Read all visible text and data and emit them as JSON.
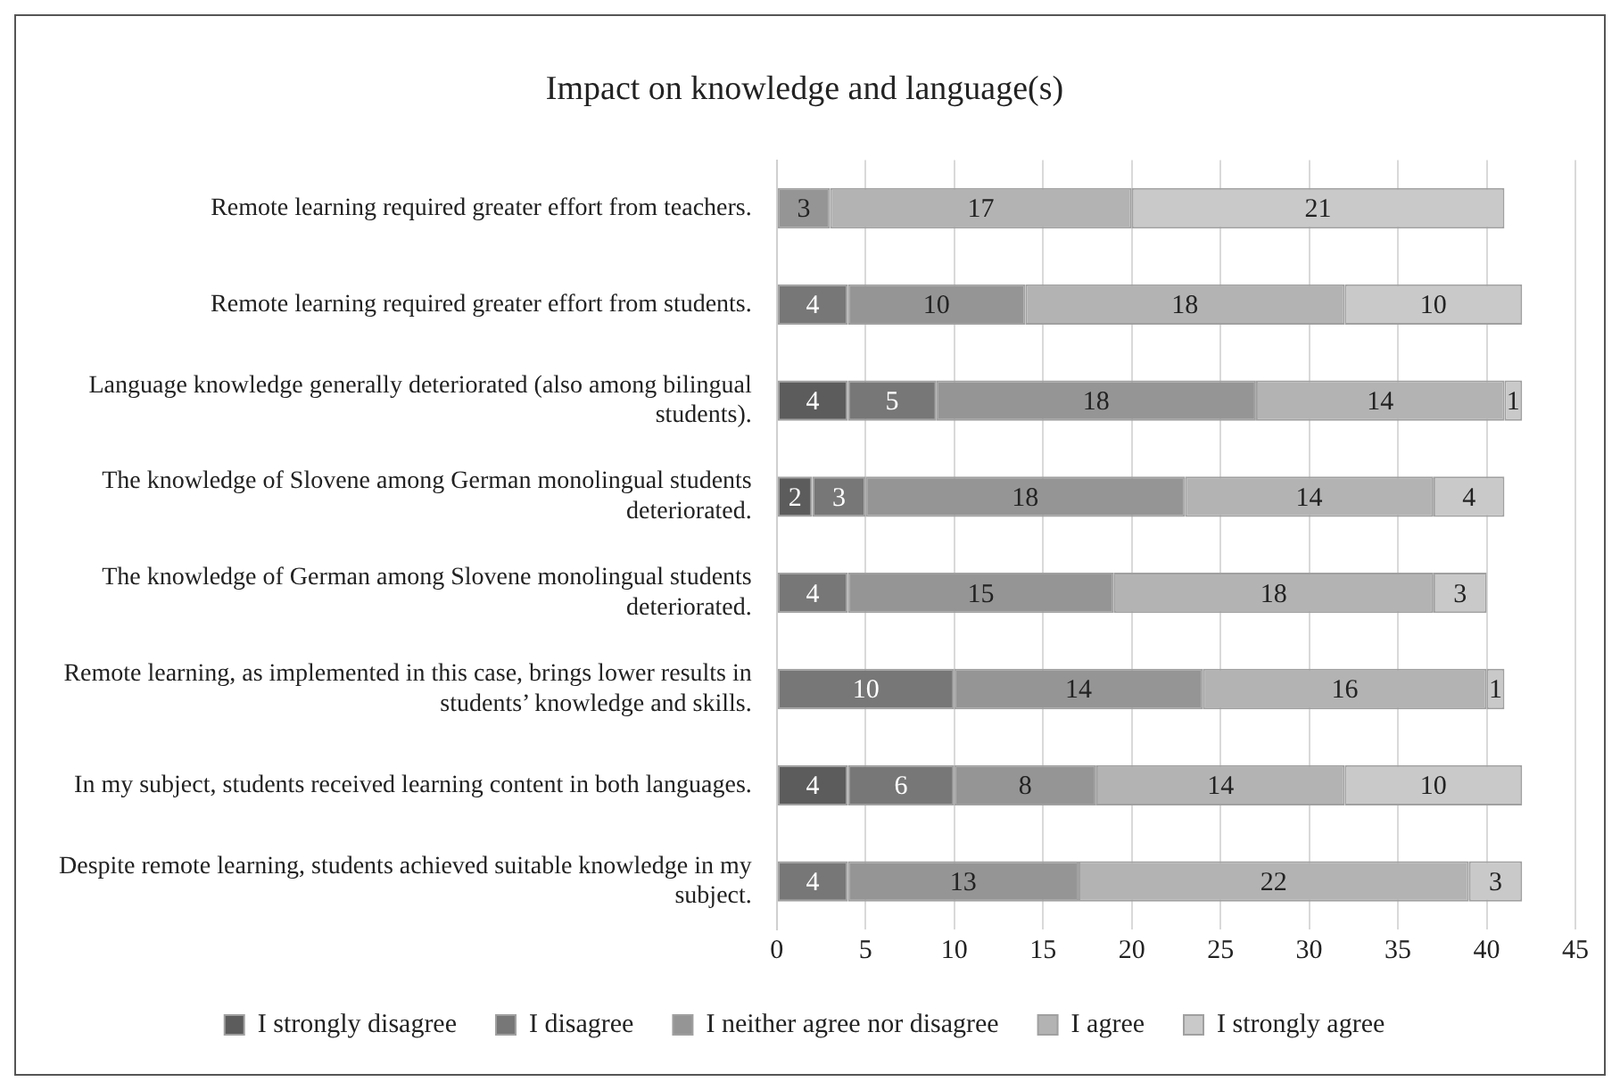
{
  "chart_data": {
    "type": "bar",
    "orientation": "horizontal",
    "stacked": true,
    "title": "Impact on knowledge and language(s)",
    "categories": [
      "Remote learning required greater effort from teachers.",
      "Remote learning required greater effort from students.",
      "Language knowledge generally deteriorated (also among bilingual students).",
      "The knowledge of Slovene among German monolingual students deteriorated.",
      "The knowledge of German among Slovene monolingual students deteriorated.",
      "Remote learning, as implemented in this case, brings lower results in students’ knowledge and skills.",
      "In my subject, students received learning content in both languages.",
      "Despite remote learning, students achieved suitable knowledge in my subject."
    ],
    "series": [
      {
        "name": "I strongly disagree",
        "color": "#5c5c5c",
        "values": [
          null,
          null,
          4,
          2,
          null,
          null,
          4,
          null
        ]
      },
      {
        "name": "I disagree",
        "color": "#777777",
        "values": [
          null,
          4,
          5,
          3,
          4,
          10,
          6,
          4
        ]
      },
      {
        "name": "I neither agree nor disagree",
        "color": "#959595",
        "values": [
          3,
          10,
          18,
          18,
          15,
          14,
          8,
          13
        ]
      },
      {
        "name": "I agree",
        "color": "#b3b3b3",
        "values": [
          17,
          18,
          14,
          14,
          18,
          16,
          14,
          22
        ]
      },
      {
        "name": "I strongly agree",
        "color": "#c9c9c9",
        "values": [
          21,
          10,
          1,
          4,
          3,
          1,
          10,
          3
        ]
      }
    ],
    "xlim": [
      0,
      45
    ],
    "xticks": [
      0,
      5,
      10,
      15,
      20,
      25,
      30,
      35,
      40,
      45
    ],
    "grid": "x",
    "legend": "bottom",
    "data_labels": true
  }
}
